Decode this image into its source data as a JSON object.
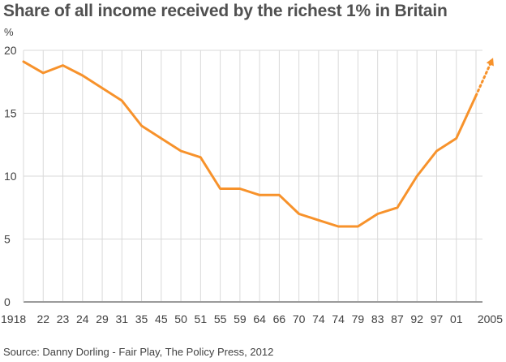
{
  "chart_data": {
    "type": "line",
    "title": "Share of all income received by the richest 1% in Britain",
    "unit_label": "%",
    "categories": [
      "1918",
      "22",
      "23",
      "24",
      "29",
      "31",
      "35",
      "45",
      "50",
      "51",
      "55",
      "59",
      "64",
      "66",
      "70",
      "74",
      "74",
      "79",
      "83",
      "87",
      "92",
      "97",
      "01",
      "2005"
    ],
    "series": [
      {
        "values": [
          19.1,
          18.2,
          18.8,
          18.0,
          17.0,
          16.0,
          14.0,
          13.0,
          12.0,
          11.5,
          9.0,
          9.0,
          8.5,
          8.5,
          7.0,
          6.5,
          6.0,
          6.0,
          7.0,
          7.5,
          10.0,
          12.0,
          13.0,
          16.4
        ],
        "color": "#f7922b"
      }
    ],
    "trend_arrow": {
      "from": 16.4,
      "to": 19.5,
      "style": "dotted"
    },
    "ylim": [
      0,
      20
    ],
    "yticks": [
      0,
      5,
      10,
      15,
      20
    ],
    "grid": "vertical-and-horizontal",
    "xlabel": "",
    "ylabel": "",
    "source": "Source: Danny Dorling - Fair Play, The Policy Press, 2012"
  }
}
